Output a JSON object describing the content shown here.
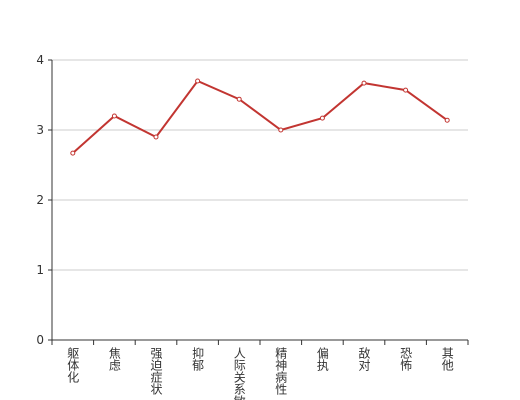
{
  "chart_data": {
    "type": "line",
    "categories": [
      "躯体化",
      "焦虑",
      "强迫症状",
      "抑郁",
      "人际关系敏感",
      "精神病性",
      "偏执",
      "敌对",
      "恐怖",
      "其他"
    ],
    "values": [
      2.67,
      3.2,
      2.9,
      3.7,
      3.44,
      3.0,
      3.17,
      3.67,
      3.57,
      3.14
    ],
    "color": "#c23531",
    "ylim": [
      0,
      4
    ],
    "yticks": [
      0,
      1,
      2,
      3,
      4
    ],
    "grid": true
  }
}
